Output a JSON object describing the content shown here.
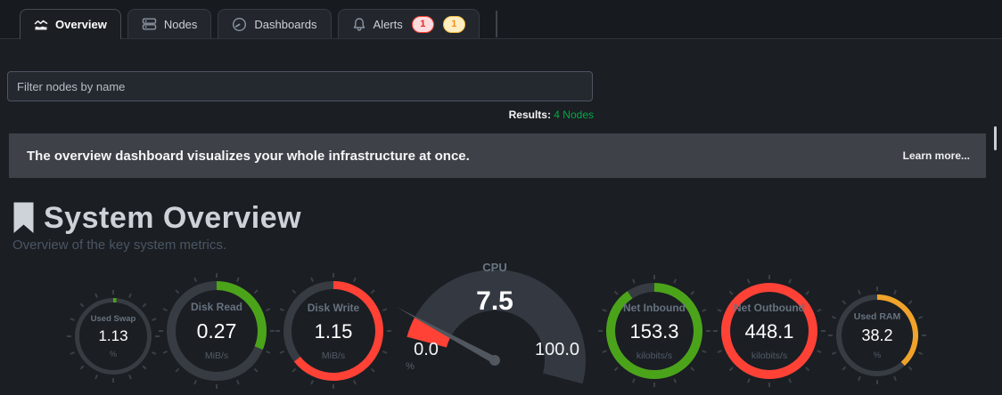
{
  "tabs": {
    "items": [
      {
        "label": "Overview",
        "icon": "area-chart-icon",
        "active": true
      },
      {
        "label": "Nodes",
        "icon": "nodes-icon",
        "active": false
      },
      {
        "label": "Dashboards",
        "icon": "gauge-icon",
        "active": false
      },
      {
        "label": "Alerts",
        "icon": "bell-icon",
        "active": false,
        "badges": [
          {
            "value": "1",
            "type": "critical"
          },
          {
            "value": "1",
            "type": "warning"
          }
        ]
      }
    ]
  },
  "filter": {
    "placeholder": "Filter nodes by name",
    "value": ""
  },
  "results": {
    "label": "Results:",
    "value": "4 Nodes"
  },
  "banner": {
    "message": "The overview dashboard visualizes your whole infrastructure at once.",
    "link": "Learn more..."
  },
  "section": {
    "title": "System Overview",
    "subtitle": "Overview of the key system metrics."
  },
  "colors": {
    "green": "#4ba31a",
    "red": "#ff4136",
    "orange": "#f0a32a",
    "track": "#373c43",
    "tick": "#3a4046",
    "fan": "#343941",
    "needle": "#51575e",
    "results_green": "#00ab44"
  },
  "chart_data": [
    {
      "type": "ring",
      "label": "Used Swap",
      "value": "1.13",
      "unit": "%",
      "sweep_deg": 5,
      "color": "green"
    },
    {
      "type": "ring",
      "label": "Disk Read",
      "value": "0.27",
      "unit": "MiB/s",
      "sweep_deg": 112,
      "color": "green"
    },
    {
      "type": "ring",
      "label": "Disk Write",
      "value": "1.15",
      "unit": "MiB/s",
      "sweep_deg": 232,
      "color": "red"
    },
    {
      "type": "gauge",
      "label": "CPU",
      "value": "7.5",
      "unit": "%",
      "min_label": "0.0",
      "max_label": "100.0",
      "percent": 7.5,
      "range": [
        0,
        100
      ],
      "color": "red"
    },
    {
      "type": "ring",
      "label": "Net Inbound",
      "value": "153.3",
      "unit": "kilobits/s",
      "sweep_deg": 326,
      "color": "green"
    },
    {
      "type": "ring",
      "label": "Net Outbound",
      "value": "448.1",
      "unit": "kilobits/s",
      "sweep_deg": 360,
      "color": "red"
    },
    {
      "type": "ring",
      "label": "Used RAM",
      "value": "38.2",
      "unit": "%",
      "sweep_deg": 138,
      "color": "orange"
    }
  ]
}
